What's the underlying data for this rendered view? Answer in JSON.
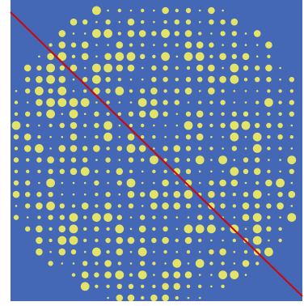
{
  "view": {
    "background_color": "#4467b6",
    "dot_color": "#e3e36a",
    "line_color": "#c40d12",
    "page_color": "#ffffff"
  }
}
